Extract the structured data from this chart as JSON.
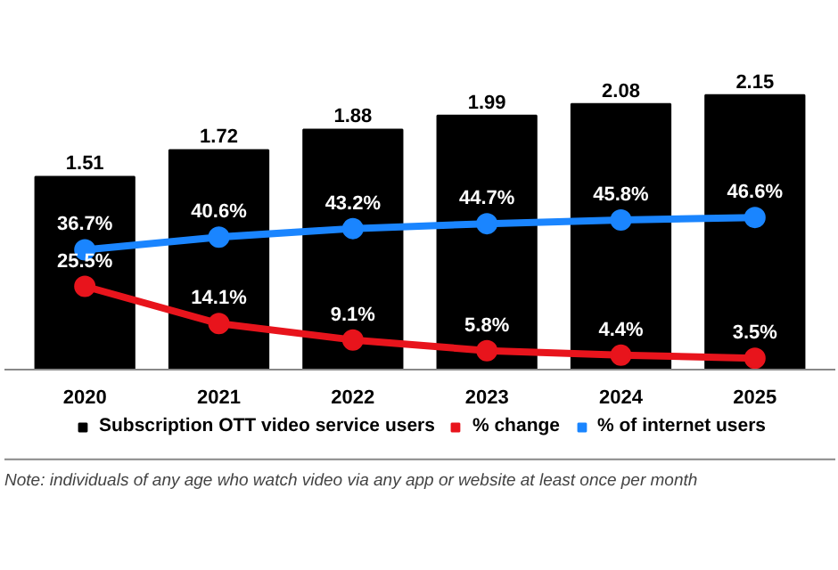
{
  "chart_data": {
    "type": "bar",
    "categories": [
      "2020",
      "2021",
      "2022",
      "2023",
      "2024",
      "2025"
    ],
    "series": [
      {
        "name": "Subscription OTT video service users",
        "color": "#000000",
        "values": [
          1.51,
          1.72,
          1.88,
          1.99,
          2.08,
          2.15
        ]
      },
      {
        "name": "% change",
        "type": "line",
        "axis": "y2",
        "color": "#e8141c",
        "values": [
          25.5,
          14.1,
          9.1,
          5.8,
          4.4,
          3.5
        ],
        "value_labels": [
          "25.5%",
          "14.1%",
          "9.1%",
          "5.8%",
          "4.4%",
          "3.5%"
        ]
      },
      {
        "name": "% of internet users",
        "type": "line",
        "axis": "y2",
        "color": "#1a85ff",
        "values": [
          36.7,
          40.6,
          43.2,
          44.7,
          45.8,
          46.6
        ],
        "value_labels": [
          "36.7%",
          "40.6%",
          "43.2%",
          "44.7%",
          "45.8%",
          "46.6%"
        ]
      }
    ],
    "data_labels": true,
    "tick_labels": "x",
    "grid": false,
    "legend": "bottom",
    "marker": "circle",
    "line_style": "solid",
    "annotations": [
      "Note: individuals of any age who watch video via any app or website at least once per month"
    ]
  }
}
